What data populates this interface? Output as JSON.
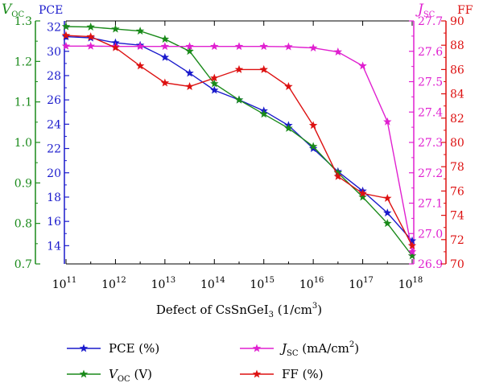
{
  "chart_data": {
    "type": "line",
    "xlabel": "Defect of CsSnGeI3 (1/cm3)",
    "xlabel_parts": {
      "base": "Defect of CsSnGeI",
      "sub": "3",
      "mid": " (1/cm",
      "sup": "3",
      "tail": ")"
    },
    "x_scale": "log",
    "xlim": [
      100000000000.0,
      1e+18
    ],
    "x_ticks": [
      {
        "value": 100000000000.0,
        "base": "10",
        "exp": "11"
      },
      {
        "value": 1000000000000.0,
        "base": "10",
        "exp": "12"
      },
      {
        "value": 10000000000000.0,
        "base": "10",
        "exp": "13"
      },
      {
        "value": 100000000000000.0,
        "base": "10",
        "exp": "14"
      },
      {
        "value": 1000000000000000.0,
        "base": "10",
        "exp": "15"
      },
      {
        "value": 1e+16,
        "base": "10",
        "exp": "16"
      },
      {
        "value": 1e+17,
        "base": "10",
        "exp": "17"
      },
      {
        "value": 1e+18,
        "base": "10",
        "exp": "18"
      }
    ],
    "x": [
      100000000000.0,
      316000000000.0,
      1000000000000.0,
      3160000000000.0,
      10000000000000.0,
      31600000000000.0,
      100000000000000.0,
      316000000000000.0,
      1000000000000000.0,
      3160000000000000.0,
      1e+16,
      3.16e+16,
      1e+17,
      3.16e+17,
      1e+18
    ],
    "axes": [
      {
        "id": "voc",
        "side": "left",
        "title_main": "V",
        "title_sub": "OC",
        "color": "#1a8a1a",
        "lim": [
          0.7,
          1.3
        ],
        "ticks": [
          "0.7",
          "0.8",
          "0.9",
          "1.0",
          "1.1",
          "1.2",
          "1.3"
        ]
      },
      {
        "id": "pce",
        "side": "left",
        "title_main": "PCE",
        "title_sub": "",
        "color": "#1a1acc",
        "lim": [
          12.5,
          32.5
        ],
        "ticks": [
          "14",
          "16",
          "18",
          "20",
          "22",
          "24",
          "26",
          "28",
          "30",
          "32"
        ]
      },
      {
        "id": "jsc",
        "side": "right",
        "title_main": "J",
        "title_sub": "SC",
        "color": "#e020d0",
        "lim": [
          26.9,
          27.7
        ],
        "ticks": [
          "26.9",
          "27.0",
          "27.1",
          "27.2",
          "27.3",
          "27.4",
          "27.5",
          "27.6",
          "27.7"
        ]
      },
      {
        "id": "ff",
        "side": "right",
        "title_main": "FF",
        "title_sub": "",
        "color": "#dd1111",
        "lim": [
          70,
          90
        ],
        "ticks": [
          "70",
          "72",
          "74",
          "76",
          "78",
          "80",
          "82",
          "84",
          "86",
          "88",
          "90"
        ]
      }
    ],
    "series": [
      {
        "name": "PCE (%)",
        "axis": "pce",
        "color": "#1a1acc",
        "values": [
          31.2,
          31.1,
          30.7,
          30.5,
          29.5,
          28.2,
          26.8,
          26.0,
          25.1,
          23.9,
          22.0,
          20.1,
          18.5,
          16.7,
          14.4
        ]
      },
      {
        "name": "VOC (V)",
        "axis": "voc",
        "color": "#1a8a1a",
        "values": [
          1.286,
          1.285,
          1.28,
          1.275,
          1.255,
          1.225,
          1.145,
          1.105,
          1.07,
          1.035,
          0.99,
          0.925,
          0.865,
          0.8,
          0.72
        ]
      },
      {
        "name": "JSC (mA/cm2)",
        "axis": "jsc",
        "color": "#e020d0",
        "values": [
          27.617,
          27.617,
          27.616,
          27.616,
          27.616,
          27.616,
          27.616,
          27.616,
          27.616,
          27.615,
          27.611,
          27.598,
          27.552,
          27.368,
          26.94
        ]
      },
      {
        "name": "FF (%)",
        "axis": "ff",
        "color": "#dd1111",
        "values": [
          88.8,
          88.7,
          87.8,
          86.3,
          84.9,
          84.6,
          85.3,
          86.0,
          86.0,
          84.6,
          81.4,
          77.2,
          75.8,
          75.4,
          71.5
        ]
      }
    ],
    "legend": {
      "placement": "bottom",
      "entries": [
        {
          "series": 0,
          "main": "PCE (%)",
          "sub": "",
          "tail": "",
          "sup": "",
          "end": ""
        },
        {
          "series": 2,
          "main": "J",
          "sub": "SC",
          "tail": " (mA/cm",
          "sup": "2",
          "end": ")"
        },
        {
          "series": 1,
          "main": "V",
          "sub": "OC",
          "tail": " (V)",
          "sup": "",
          "end": ""
        },
        {
          "series": 3,
          "main": "FF (%)",
          "sub": "",
          "tail": "",
          "sup": "",
          "end": ""
        }
      ]
    },
    "grid": false,
    "marker": "star"
  }
}
